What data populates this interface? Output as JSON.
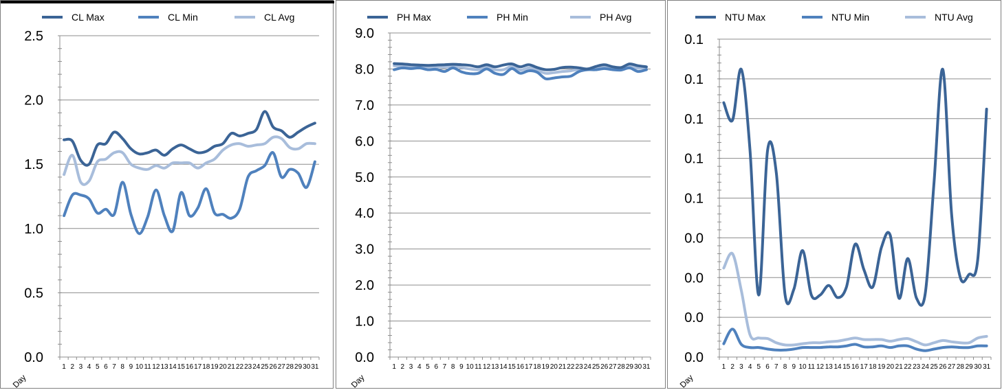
{
  "chart_data": [
    {
      "type": "line",
      "xlabel": "Day",
      "ylabel": "",
      "ylim": [
        0,
        2.5
      ],
      "yticks": [
        "0.0",
        "0.5",
        "1.0",
        "1.5",
        "2.0",
        "2.5"
      ],
      "categories": [
        "1",
        "2",
        "3",
        "4",
        "5",
        "6",
        "7",
        "8",
        "9",
        "10",
        "11",
        "12",
        "13",
        "14",
        "15",
        "16",
        "17",
        "18",
        "19",
        "20",
        "21",
        "22",
        "23",
        "24",
        "25",
        "26",
        "27",
        "28",
        "29",
        "30",
        "31"
      ],
      "legend_position": "top",
      "grid": true,
      "series": [
        {
          "name": "CL Max",
          "color": "#3b6496",
          "values": [
            1.69,
            1.68,
            1.53,
            1.5,
            1.65,
            1.66,
            1.75,
            1.7,
            1.62,
            1.58,
            1.59,
            1.61,
            1.57,
            1.62,
            1.65,
            1.62,
            1.59,
            1.6,
            1.64,
            1.66,
            1.74,
            1.72,
            1.74,
            1.77,
            1.91,
            1.79,
            1.76,
            1.71,
            1.75,
            1.79,
            1.82
          ]
        },
        {
          "name": "CL Min",
          "color": "#4f81bd",
          "values": [
            1.1,
            1.26,
            1.26,
            1.23,
            1.12,
            1.15,
            1.11,
            1.36,
            1.11,
            0.96,
            1.09,
            1.3,
            1.1,
            0.98,
            1.28,
            1.1,
            1.16,
            1.31,
            1.12,
            1.11,
            1.08,
            1.15,
            1.4,
            1.45,
            1.49,
            1.59,
            1.4,
            1.46,
            1.43,
            1.32,
            1.52
          ]
        },
        {
          "name": "CL Avg",
          "color": "#a8bddb",
          "values": [
            1.42,
            1.57,
            1.36,
            1.37,
            1.52,
            1.54,
            1.59,
            1.59,
            1.5,
            1.47,
            1.46,
            1.49,
            1.47,
            1.51,
            1.51,
            1.51,
            1.47,
            1.51,
            1.54,
            1.61,
            1.65,
            1.66,
            1.64,
            1.65,
            1.66,
            1.71,
            1.7,
            1.63,
            1.62,
            1.66,
            1.66
          ]
        }
      ]
    },
    {
      "type": "line",
      "xlabel": "Day",
      "ylabel": "",
      "ylim": [
        0,
        9
      ],
      "yticks": [
        "0.0",
        "1.0",
        "2.0",
        "3.0",
        "4.0",
        "5.0",
        "6.0",
        "7.0",
        "8.0",
        "9.0"
      ],
      "categories": [
        "1",
        "2",
        "3",
        "4",
        "5",
        "6",
        "7",
        "8",
        "9",
        "10",
        "11",
        "12",
        "13",
        "14",
        "15",
        "16",
        "17",
        "18",
        "19",
        "20",
        "21",
        "22",
        "23",
        "24",
        "25",
        "26",
        "27",
        "28",
        "29",
        "30",
        "31"
      ],
      "legend_position": "top",
      "grid": true,
      "series": [
        {
          "name": "PH Max",
          "color": "#3b6496",
          "values": [
            8.15,
            8.14,
            8.12,
            8.11,
            8.1,
            8.11,
            8.12,
            8.13,
            8.12,
            8.1,
            8.06,
            8.12,
            8.06,
            8.11,
            8.14,
            8.06,
            8.12,
            8.04,
            7.98,
            7.99,
            8.04,
            8.05,
            8.03,
            8.0,
            8.07,
            8.12,
            8.06,
            8.04,
            8.14,
            8.09,
            8.06
          ]
        },
        {
          "name": "PH Min",
          "color": "#4f81bd",
          "values": [
            7.98,
            8.03,
            8.01,
            8.03,
            7.98,
            7.99,
            7.93,
            8.03,
            7.92,
            7.87,
            7.88,
            8.0,
            7.88,
            7.85,
            8.01,
            7.88,
            7.95,
            7.91,
            7.73,
            7.75,
            7.78,
            7.8,
            7.93,
            7.98,
            7.98,
            8.01,
            7.98,
            7.97,
            8.03,
            7.93,
            7.98
          ]
        },
        {
          "name": "PH Avg",
          "color": "#a8bddb",
          "values": [
            8.09,
            8.08,
            8.07,
            8.06,
            8.06,
            8.06,
            8.05,
            8.08,
            8.04,
            8.0,
            7.98,
            8.05,
            7.98,
            7.98,
            8.07,
            7.97,
            8.03,
            7.97,
            7.88,
            7.9,
            7.93,
            7.95,
            7.99,
            8.0,
            8.03,
            8.05,
            8.03,
            8.02,
            8.08,
            8.02,
            8.04
          ]
        }
      ]
    },
    {
      "type": "line",
      "xlabel": "Day",
      "ylabel": "",
      "ylim": [
        0,
        0.1
      ],
      "yticks": [
        "0.0",
        "0.0",
        "0.0",
        "0.0",
        "0.1",
        "0.1",
        "0.1",
        "0.1",
        "0.1"
      ],
      "categories": [
        "1",
        "2",
        "3",
        "4",
        "5",
        "6",
        "7",
        "8",
        "9",
        "10",
        "11",
        "12",
        "13",
        "14",
        "15",
        "16",
        "17",
        "18",
        "19",
        "20",
        "21",
        "22",
        "23",
        "24",
        "25",
        "26",
        "27",
        "28",
        "29",
        "30",
        "31"
      ],
      "legend_position": "top",
      "grid": true,
      "series": [
        {
          "name": "NTU Max",
          "color": "#3b6496",
          "values": [
            0.08,
            0.0745,
            0.0905,
            0.065,
            0.0195,
            0.065,
            0.058,
            0.0195,
            0.0213,
            0.0335,
            0.0195,
            0.0195,
            0.0225,
            0.0187,
            0.022,
            0.0355,
            0.0275,
            0.022,
            0.0345,
            0.0383,
            0.0185,
            0.031,
            0.0185,
            0.02,
            0.055,
            0.0905,
            0.045,
            0.025,
            0.026,
            0.031,
            0.078
          ]
        },
        {
          "name": "NTU Min",
          "color": "#4f81bd",
          "values": [
            0.0042,
            0.0088,
            0.004,
            0.003,
            0.003,
            0.0025,
            0.0022,
            0.0022,
            0.0025,
            0.003,
            0.003,
            0.003,
            0.0032,
            0.0032,
            0.0035,
            0.004,
            0.0032,
            0.0032,
            0.0035,
            0.003,
            0.0035,
            0.0035,
            0.0025,
            0.002,
            0.0025,
            0.003,
            0.0032,
            0.003,
            0.003,
            0.0035,
            0.0035
          ]
        },
        {
          "name": "NTU Avg",
          "color": "#a8bddb",
          "values": [
            0.028,
            0.0325,
            0.021,
            0.007,
            0.006,
            0.0058,
            0.0045,
            0.0038,
            0.0038,
            0.0042,
            0.0045,
            0.0045,
            0.0048,
            0.005,
            0.0055,
            0.006,
            0.0055,
            0.0055,
            0.0055,
            0.005,
            0.0055,
            0.0058,
            0.0048,
            0.0038,
            0.0045,
            0.0052,
            0.0048,
            0.0045,
            0.0045,
            0.006,
            0.0065
          ]
        }
      ]
    }
  ]
}
